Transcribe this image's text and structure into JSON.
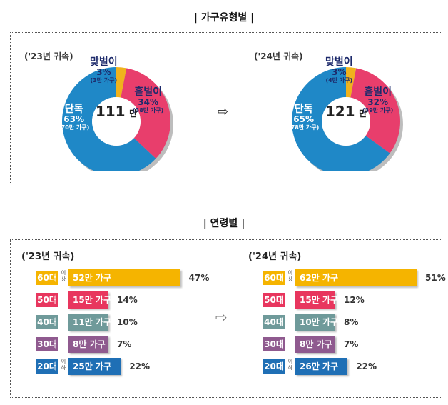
{
  "titles": {
    "household_type": "| 가구유형별 |",
    "age": "| 연령별 |"
  },
  "arrow": "⇨",
  "colors": {
    "single": "#1f88c7",
    "dual": "#f0b21d",
    "sole": "#e83e6c",
    "age_60": "#f5b400",
    "age_50": "#e8365e",
    "age_40": "#6f9a9a",
    "age_30": "#8f5a8f",
    "age_20": "#1f6fb5"
  },
  "chart_data": [
    {
      "type": "pie",
      "title": "가구유형별",
      "year_label": "('23년 귀속)",
      "center": {
        "value": "111",
        "unit": "만"
      },
      "slices": [
        {
          "name": "맞벌이",
          "pct_label": "3%",
          "sub_label": "(3만 가구)",
          "value": 3
        },
        {
          "name": "홑벌이",
          "pct_label": "34%",
          "sub_label": "(38만 가구)",
          "value": 34
        },
        {
          "name": "단독",
          "pct_label": "63%",
          "sub_label": "(70만 가구)",
          "value": 63
        }
      ]
    },
    {
      "type": "pie",
      "title": "가구유형별",
      "year_label": "('24년 귀속)",
      "center": {
        "value": "121",
        "unit": "만"
      },
      "slices": [
        {
          "name": "맞벌이",
          "pct_label": "3%",
          "sub_label": "(4만 가구)",
          "value": 3
        },
        {
          "name": "홑벌이",
          "pct_label": "32%",
          "sub_label": "(39만 가구)",
          "value": 32
        },
        {
          "name": "단독",
          "pct_label": "65%",
          "sub_label": "(78만 가구)",
          "value": 65
        }
      ]
    },
    {
      "type": "bar",
      "title": "연령별",
      "year_label": "('23년 귀속)",
      "categories": [
        "60대",
        "50대",
        "40대",
        "30대",
        "20대"
      ],
      "suffixes": [
        "이상",
        "",
        "",
        "",
        "이하"
      ],
      "bar_labels": [
        "52만 가구",
        "15만 가구",
        "11만 가구",
        "8만 가구",
        "25만 가구"
      ],
      "pct_labels": [
        "47%",
        "14%",
        "10%",
        "7%",
        "22%"
      ],
      "values": [
        47,
        14,
        10,
        7,
        22
      ]
    },
    {
      "type": "bar",
      "title": "연령별",
      "year_label": "('24년 귀속)",
      "categories": [
        "60대",
        "50대",
        "40대",
        "30대",
        "20대"
      ],
      "suffixes": [
        "이상",
        "",
        "",
        "",
        "이하"
      ],
      "bar_labels": [
        "62만 가구",
        "15만 가구",
        "10만 가구",
        "8만 가구",
        "26만 가구"
      ],
      "pct_labels": [
        "51%",
        "12%",
        "8%",
        "7%",
        "22%"
      ],
      "values": [
        51,
        12,
        8,
        7,
        22
      ]
    }
  ]
}
